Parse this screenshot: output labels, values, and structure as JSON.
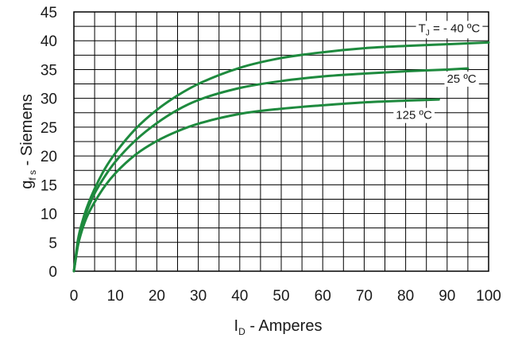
{
  "chart_data": {
    "type": "line",
    "xlabel": {
      "main": "I",
      "sub": "D",
      "rest": " - Amperes"
    },
    "ylabel": {
      "main": "g",
      "sub": "f s",
      "rest": " - Siemens"
    },
    "xlim": [
      0,
      100
    ],
    "ylim": [
      0,
      45
    ],
    "x_ticks": [
      "0",
      "10",
      "20",
      "30",
      "40",
      "50",
      "60",
      "70",
      "80",
      "90",
      "100"
    ],
    "y_ticks": [
      "0",
      "5",
      "10",
      "15",
      "20",
      "25",
      "30",
      "35",
      "40",
      "45"
    ],
    "grid": {
      "x_minor_step": 5,
      "y_minor_step": 2.5
    },
    "series_color": "#1e8a3e",
    "series": [
      {
        "label": {
          "t": "T",
          "sub": "J",
          "rest": " = - 40 ºC"
        },
        "x": [
          0,
          1,
          2,
          3,
          5,
          7.5,
          10,
          15,
          20,
          25,
          30,
          40,
          50,
          60,
          70,
          80,
          90,
          100
        ],
        "y": [
          0,
          5.5,
          8.5,
          10.8,
          14.3,
          17.8,
          20.5,
          24.8,
          28.0,
          30.5,
          32.5,
          35.3,
          37.0,
          38.0,
          38.7,
          39.1,
          39.4,
          39.7
        ]
      },
      {
        "label": {
          "t": "",
          "sub": "",
          "rest": "25 ºC"
        },
        "x": [
          0,
          1,
          2,
          3,
          5,
          7.5,
          10,
          15,
          20,
          25,
          30,
          40,
          50,
          60,
          70,
          80,
          90,
          95
        ],
        "y": [
          0,
          5.0,
          8.0,
          10.2,
          13.5,
          16.5,
          19.0,
          22.8,
          25.7,
          28.0,
          29.7,
          31.8,
          33.0,
          33.8,
          34.3,
          34.7,
          35.0,
          35.2
        ]
      },
      {
        "label": {
          "t": "",
          "sub": "",
          "rest": "125 ºC"
        },
        "x": [
          0,
          1,
          2,
          3,
          5,
          7.5,
          10,
          15,
          20,
          25,
          30,
          40,
          50,
          60,
          70,
          80,
          88
        ],
        "y": [
          0,
          4.5,
          7.2,
          9.2,
          12.0,
          14.8,
          17.0,
          20.3,
          22.6,
          24.3,
          25.6,
          27.3,
          28.2,
          28.8,
          29.3,
          29.6,
          29.8
        ]
      }
    ]
  }
}
